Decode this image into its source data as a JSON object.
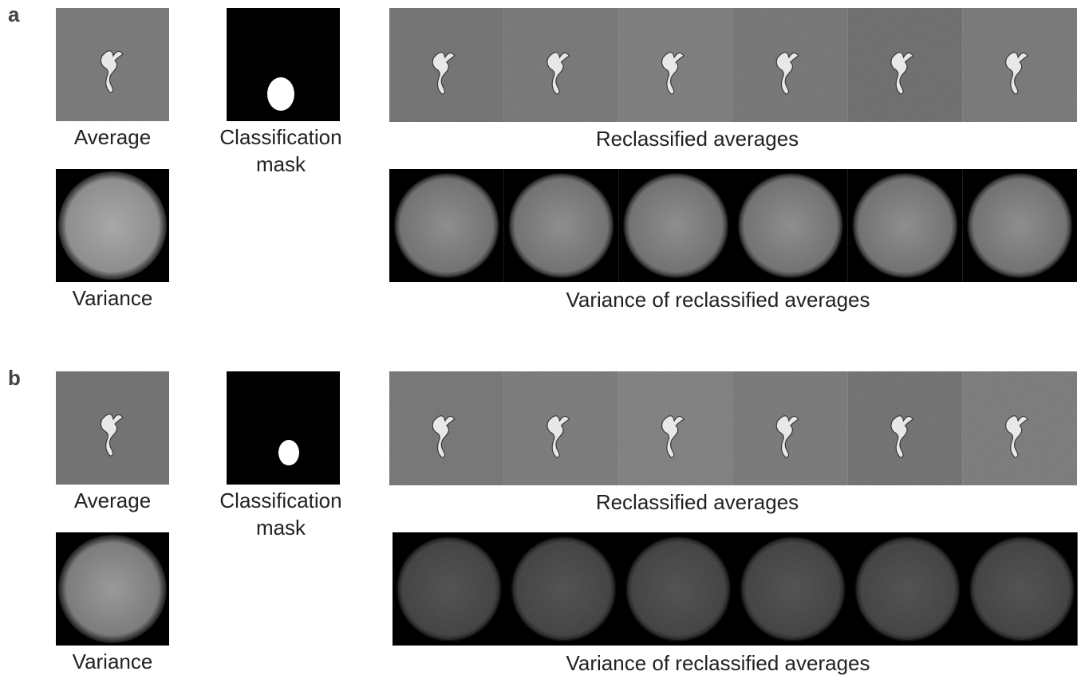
{
  "panels": [
    {
      "label": "a",
      "average_label": "Average",
      "mask_label": [
        "Classification",
        "mask"
      ],
      "variance_label": "Variance",
      "reclassified_label": "Reclassified averages",
      "reclassified_variance_label": "Variance of reclassified averages"
    },
    {
      "label": "b",
      "average_label": "Average",
      "mask_label": [
        "Classification",
        "mask"
      ],
      "variance_label": "Variance",
      "reclassified_label": "Reclassified averages",
      "reclassified_variance_label": "Variance of reclassified averages"
    }
  ]
}
